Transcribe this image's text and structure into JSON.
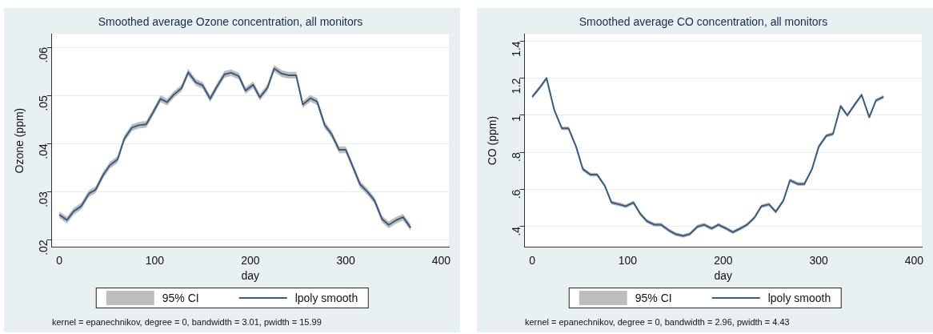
{
  "chart_data": [
    {
      "type": "line",
      "title": "Smoothed average Ozone concentration, all monitors",
      "xlabel": "day",
      "ylabel": "Ozone (ppm)",
      "x": [
        0,
        8,
        15,
        23,
        31,
        38,
        46,
        53,
        61,
        68,
        76,
        83,
        91,
        98,
        106,
        113,
        120,
        128,
        135,
        143,
        150,
        158,
        165,
        173,
        180,
        188,
        195,
        203,
        210,
        218,
        225,
        233,
        240,
        248,
        255,
        263,
        270,
        278,
        285,
        293,
        300,
        308,
        315,
        323,
        330,
        338,
        345,
        353,
        360,
        368
      ],
      "series": [
        {
          "name": "lpoly smooth",
          "color": "#3b5b7c",
          "lower": [
            0.0245,
            0.0234,
            0.0252,
            0.0263,
            0.0289,
            0.0297,
            0.0328,
            0.0348,
            0.036,
            0.0403,
            0.0426,
            0.0431,
            0.0433,
            0.0457,
            0.0486,
            0.0479,
            0.0495,
            0.0508,
            0.0541,
            0.052,
            0.0514,
            0.0486,
            0.0511,
            0.0537,
            0.054,
            0.0533,
            0.0503,
            0.0515,
            0.0489,
            0.0509,
            0.0549,
            0.0538,
            0.0535,
            0.0535,
            0.0474,
            0.0487,
            0.048,
            0.0431,
            0.0413,
            0.038,
            0.038,
            0.0342,
            0.0308,
            0.0292,
            0.0275,
            0.0236,
            0.0224,
            0.0234,
            0.024,
            0.0218
          ],
          "upper": [
            0.0259,
            0.0248,
            0.0266,
            0.0277,
            0.0303,
            0.0311,
            0.0342,
            0.0362,
            0.0374,
            0.0417,
            0.044,
            0.0445,
            0.0447,
            0.0471,
            0.05,
            0.0493,
            0.0509,
            0.0522,
            0.0555,
            0.0534,
            0.0528,
            0.05,
            0.0525,
            0.0551,
            0.0554,
            0.0547,
            0.0517,
            0.0529,
            0.0503,
            0.0523,
            0.0563,
            0.0552,
            0.0549,
            0.0549,
            0.0488,
            0.0501,
            0.0494,
            0.0445,
            0.0427,
            0.0394,
            0.0394,
            0.0356,
            0.0322,
            0.0306,
            0.0289,
            0.025,
            0.0238,
            0.0248,
            0.0254,
            0.0232
          ],
          "values": [
            0.0252,
            0.0241,
            0.0259,
            0.027,
            0.0296,
            0.0304,
            0.0335,
            0.0355,
            0.0367,
            0.041,
            0.0433,
            0.0438,
            0.044,
            0.0464,
            0.0493,
            0.0486,
            0.0502,
            0.0515,
            0.0548,
            0.0527,
            0.0521,
            0.0493,
            0.0518,
            0.0544,
            0.0547,
            0.054,
            0.051,
            0.0522,
            0.0496,
            0.0516,
            0.0556,
            0.0545,
            0.0542,
            0.0542,
            0.0481,
            0.0494,
            0.0487,
            0.0438,
            0.042,
            0.0387,
            0.0387,
            0.0349,
            0.0315,
            0.0299,
            0.0282,
            0.0243,
            0.0231,
            0.0241,
            0.0247,
            0.0225
          ]
        }
      ],
      "xlim": [
        -8,
        408
      ],
      "xticks": [
        0,
        100,
        200,
        300,
        400
      ],
      "ylim": [
        0.0185,
        0.0627
      ],
      "yticks": [
        {
          "value": 0.02,
          "label": ".02"
        },
        {
          "value": 0.03,
          "label": ".03"
        },
        {
          "value": 0.04,
          "label": ".04"
        },
        {
          "value": 0.05,
          "label": ".05"
        },
        {
          "value": 0.06,
          "label": ".06"
        }
      ],
      "grid": "y",
      "legend": "bottom",
      "marker": "none",
      "annotations": [
        "95% CI",
        "kernel = epanechnikov, degree = 0, bandwidth = 3.01, pwidth = 15.99"
      ]
    },
    {
      "type": "line",
      "title": "Smoothed average CO concentration, all monitors",
      "xlabel": "day",
      "ylabel": "CO (ppm)",
      "x": [
        0,
        8,
        15,
        23,
        31,
        38,
        46,
        53,
        61,
        68,
        76,
        83,
        91,
        98,
        106,
        113,
        120,
        128,
        135,
        143,
        150,
        158,
        165,
        173,
        180,
        188,
        195,
        203,
        210,
        218,
        225,
        233,
        240,
        248,
        255,
        263,
        270,
        278,
        285,
        293,
        300,
        308,
        315,
        323,
        330,
        338,
        345,
        353,
        360,
        368
      ],
      "series": [
        {
          "name": "lpoly smooth",
          "color": "#3b5b7c",
          "lower": [
            1.09,
            1.14,
            1.19,
            1.02,
            0.92,
            0.92,
            0.82,
            0.7,
            0.67,
            0.67,
            0.61,
            0.52,
            0.51,
            0.5,
            0.52,
            0.46,
            0.42,
            0.4,
            0.4,
            0.37,
            0.35,
            0.34,
            0.35,
            0.39,
            0.4,
            0.38,
            0.4,
            0.38,
            0.36,
            0.38,
            0.4,
            0.44,
            0.5,
            0.51,
            0.47,
            0.53,
            0.64,
            0.62,
            0.62,
            0.7,
            0.82,
            0.88,
            0.89,
            1.04,
            0.99,
            1.05,
            1.1,
            0.98,
            1.07,
            1.09
          ],
          "upper": [
            1.11,
            1.16,
            1.21,
            1.04,
            0.94,
            0.94,
            0.84,
            0.72,
            0.69,
            0.69,
            0.63,
            0.54,
            0.53,
            0.52,
            0.54,
            0.48,
            0.44,
            0.42,
            0.42,
            0.39,
            0.37,
            0.36,
            0.37,
            0.41,
            0.42,
            0.4,
            0.42,
            0.4,
            0.38,
            0.4,
            0.42,
            0.46,
            0.52,
            0.53,
            0.49,
            0.55,
            0.66,
            0.64,
            0.64,
            0.72,
            0.84,
            0.9,
            0.91,
            1.06,
            1.01,
            1.07,
            1.12,
            1.0,
            1.09,
            1.11
          ],
          "values": [
            1.1,
            1.15,
            1.2,
            1.03,
            0.93,
            0.93,
            0.83,
            0.71,
            0.68,
            0.68,
            0.62,
            0.53,
            0.52,
            0.51,
            0.53,
            0.47,
            0.43,
            0.41,
            0.41,
            0.38,
            0.36,
            0.35,
            0.36,
            0.4,
            0.41,
            0.39,
            0.41,
            0.39,
            0.37,
            0.39,
            0.41,
            0.45,
            0.51,
            0.52,
            0.48,
            0.54,
            0.65,
            0.63,
            0.63,
            0.71,
            0.83,
            0.89,
            0.9,
            1.05,
            1.0,
            1.06,
            1.11,
            0.99,
            1.08,
            1.1
          ]
        }
      ],
      "xlim": [
        -8,
        408
      ],
      "xticks": [
        0,
        100,
        200,
        300,
        400
      ],
      "ylim": [
        0.29,
        1.437
      ],
      "yticks": [
        {
          "value": 0.4,
          "label": ".4"
        },
        {
          "value": 0.6,
          "label": ".6"
        },
        {
          "value": 0.8,
          "label": ".8"
        },
        {
          "value": 1,
          "label": "1"
        },
        {
          "value": 1.2,
          "label": "1.2"
        },
        {
          "value": 1.4,
          "label": "1.4"
        }
      ],
      "grid": "y",
      "legend": "bottom",
      "marker": "none",
      "annotations": [
        "95% CI",
        "kernel = epanechnikov, degree = 0, bandwidth = 2.96, pwidth = 4.43"
      ]
    }
  ]
}
